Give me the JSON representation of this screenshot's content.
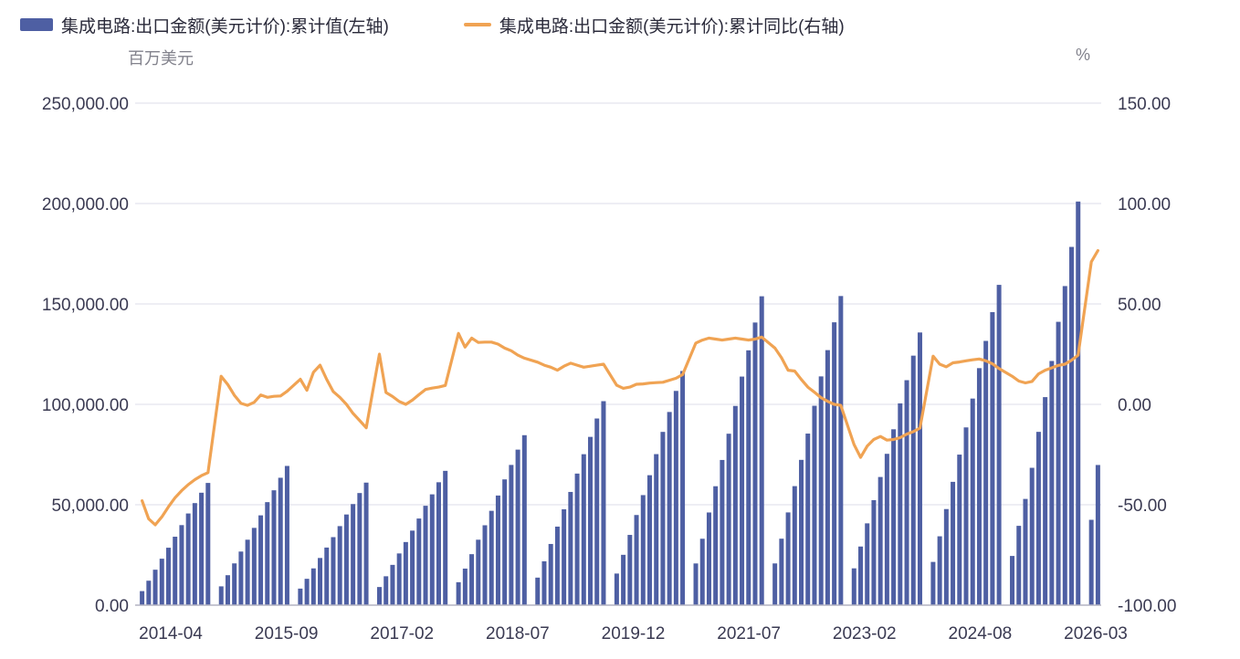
{
  "legend": {
    "bars_label": "集成电路:出口金额(美元计价):累计值(左轴)",
    "line_label": "集成电路:出口金额(美元计价):累计同比(右轴)"
  },
  "axes": {
    "left_unit": "百万美元",
    "right_unit": "%",
    "left_ticks": [
      "250,000.00",
      "200,000.00",
      "150,000.00",
      "100,000.00",
      "50,000.00",
      "0.00"
    ],
    "right_ticks": [
      "150.00",
      "100.00",
      "50.00",
      "0.00",
      "-50.00",
      "-100.00"
    ],
    "x_ticks": [
      "2014-04",
      "2015-09",
      "2017-02",
      "2018-07",
      "2019-12",
      "2021-07",
      "2023-02",
      "2024-08",
      "2026-03"
    ]
  },
  "colors": {
    "bar": "#4e5fa3",
    "line": "#f0a353",
    "grid": "#e8e8f0",
    "baseline": "#b3b3c2",
    "tick_text": "#3a3a52",
    "legend_text": "#2a2a3a",
    "unit_text": "#82828c"
  },
  "chart_data": {
    "type": "combo_bar_line",
    "title": "",
    "legend_position": "top",
    "grid": true,
    "y_left": {
      "label": "百万美元",
      "min": 0,
      "max": 250000,
      "tick_step": 50000
    },
    "y_right": {
      "label": "%",
      "min": -100,
      "max": 150,
      "tick_step": 50
    },
    "x_tick_labels": [
      "2014-04",
      "2015-09",
      "2017-02",
      "2018-07",
      "2019-12",
      "2021-07",
      "2023-02",
      "2024-08",
      "2026-03"
    ],
    "x": [
      "2014-02",
      "2014-03",
      "2014-04",
      "2014-05",
      "2014-06",
      "2014-07",
      "2014-08",
      "2014-09",
      "2014-10",
      "2014-11",
      "2014-12",
      "2015-02",
      "2015-03",
      "2015-04",
      "2015-05",
      "2015-06",
      "2015-07",
      "2015-08",
      "2015-09",
      "2015-10",
      "2015-11",
      "2015-12",
      "2016-02",
      "2016-03",
      "2016-04",
      "2016-05",
      "2016-06",
      "2016-07",
      "2016-08",
      "2016-09",
      "2016-10",
      "2016-11",
      "2016-12",
      "2017-02",
      "2017-03",
      "2017-04",
      "2017-05",
      "2017-06",
      "2017-07",
      "2017-08",
      "2017-09",
      "2017-10",
      "2017-11",
      "2017-12",
      "2018-02",
      "2018-03",
      "2018-04",
      "2018-05",
      "2018-06",
      "2018-07",
      "2018-08",
      "2018-09",
      "2018-10",
      "2018-11",
      "2018-12",
      "2019-02",
      "2019-03",
      "2019-04",
      "2019-05",
      "2019-06",
      "2019-07",
      "2019-08",
      "2019-09",
      "2019-10",
      "2019-11",
      "2019-12",
      "2020-02",
      "2020-03",
      "2020-04",
      "2020-05",
      "2020-06",
      "2020-07",
      "2020-08",
      "2020-09",
      "2020-10",
      "2020-11",
      "2020-12",
      "2021-02",
      "2021-03",
      "2021-04",
      "2021-05",
      "2021-06",
      "2021-07",
      "2021-08",
      "2021-09",
      "2021-10",
      "2021-11",
      "2021-12",
      "2022-02",
      "2022-03",
      "2022-04",
      "2022-05",
      "2022-06",
      "2022-07",
      "2022-08",
      "2022-09",
      "2022-10",
      "2022-11",
      "2022-12",
      "2023-02",
      "2023-03",
      "2023-04",
      "2023-05",
      "2023-06",
      "2023-07",
      "2023-08",
      "2023-09",
      "2023-10",
      "2023-11",
      "2023-12",
      "2024-02",
      "2024-03",
      "2024-04",
      "2024-05",
      "2024-06",
      "2024-07",
      "2024-08",
      "2024-09",
      "2024-10",
      "2024-11",
      "2024-12",
      "2025-02",
      "2025-03",
      "2025-04",
      "2025-05",
      "2025-06",
      "2025-07",
      "2025-08",
      "2025-09",
      "2025-10",
      "2025-11",
      "2025-12",
      "2026-02",
      "2026-03"
    ],
    "series": [
      {
        "name": "集成电路:出口金额(美元计价):累计值(左轴)",
        "type": "bar",
        "axis": "left",
        "unit": "百万美元",
        "values": [
          7000,
          12170,
          17650,
          23130,
          28600,
          34080,
          39860,
          45650,
          50820,
          55990,
          60860,
          9360,
          14910,
          20800,
          26690,
          32590,
          38480,
          44720,
          51300,
          57200,
          63440,
          69330,
          8240,
          13120,
          18310,
          23490,
          28680,
          33870,
          39360,
          45150,
          50340,
          55830,
          61020,
          9030,
          14380,
          20060,
          25750,
          31430,
          37120,
          43140,
          49490,
          55180,
          61200,
          66880,
          11430,
          18200,
          25390,
          32590,
          39780,
          46980,
          54590,
          62630,
          69830,
          77450,
          84640,
          13710,
          21840,
          30470,
          39110,
          47740,
          56380,
          65520,
          75170,
          83800,
          92950,
          101580,
          15740,
          25070,
          34980,
          44890,
          54800,
          64710,
          75210,
          86280,
          96200,
          106690,
          116600,
          20770,
          33070,
          46150,
          59220,
          72300,
          85370,
          99210,
          113830,
          126900,
          140750,
          153820,
          20780,
          33100,
          46180,
          59270,
          72350,
          85440,
          99290,
          113920,
          127000,
          140860,
          153940,
          18330,
          29190,
          40740,
          52280,
          63820,
          75360,
          87580,
          100480,
          112030,
          124250,
          135790,
          21530,
          34290,
          47850,
          61410,
          74970,
          88520,
          102880,
          118030,
          131590,
          145940,
          159500,
          24500,
          39500,
          52900,
          68400,
          86300,
          103600,
          121600,
          141100,
          158900,
          178400,
          201000,
          42500,
          69800
        ]
      },
      {
        "name": "集成电路:出口金额(美元计价):累计同比(右轴)",
        "type": "line",
        "axis": "right",
        "unit": "%",
        "values": [
          -48,
          -57,
          -60,
          -56,
          -51,
          -46.5,
          -43,
          -40,
          -37.5,
          -35.5,
          -34,
          14,
          9.8,
          4.5,
          0.5,
          -0.5,
          1,
          4.7,
          3.5,
          4,
          4.2,
          6.5,
          12.5,
          7,
          16,
          19.5,
          12.5,
          6.3,
          3.5,
          0,
          -4.5,
          -8,
          -11.7,
          25,
          5.9,
          3.9,
          1.4,
          0,
          2.1,
          4.8,
          7.4,
          8.1,
          8.6,
          9.4,
          35.3,
          28.5,
          33,
          30.8,
          31,
          31,
          30,
          28,
          26.7,
          24.5,
          23,
          21,
          19.5,
          18.5,
          17,
          19,
          20.5,
          19.5,
          18.5,
          19,
          19.5,
          20,
          9.5,
          8,
          8.6,
          10,
          10.2,
          10.6,
          10.8,
          11,
          12,
          13,
          14.8,
          30.5,
          32,
          33,
          32.5,
          32,
          32.5,
          33,
          32.5,
          32,
          32.5,
          33.5,
          28,
          23.2,
          17,
          16.6,
          12.4,
          8.6,
          6,
          3.3,
          1.5,
          0,
          -0.5,
          -20,
          -26.4,
          -20.8,
          -17.5,
          -16,
          -17.8,
          -17.5,
          -16.6,
          -14.8,
          -13.6,
          -11.8,
          24,
          20,
          18.7,
          20.7,
          21.1,
          21.7,
          22.2,
          22.6,
          21.7,
          20.2,
          17.8,
          14,
          11.6,
          10.7,
          11.4,
          15.2,
          17,
          18.2,
          19.4,
          20,
          22,
          24.5,
          71,
          76.6
        ]
      }
    ]
  }
}
